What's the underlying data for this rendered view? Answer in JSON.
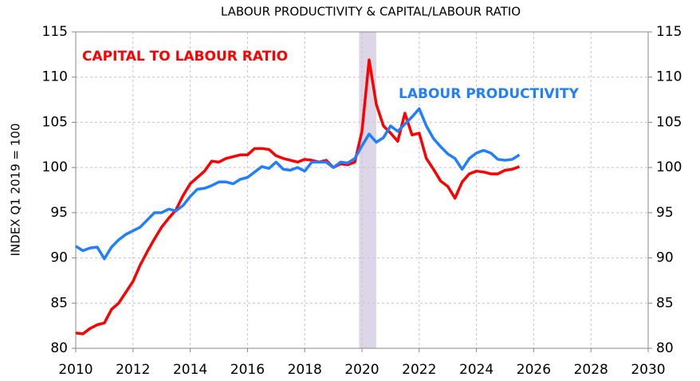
{
  "chart_data": {
    "type": "line",
    "title": "LABOUR PRODUCTIVITY & CAPITAL/LABOUR RATIO",
    "y_label": "INDEX Q1 2019 = 100",
    "x": [
      2010,
      2010.25,
      2010.5,
      2010.75,
      2011,
      2011.25,
      2011.5,
      2011.75,
      2012,
      2012.25,
      2012.5,
      2012.75,
      2013,
      2013.25,
      2013.5,
      2013.75,
      2014,
      2014.25,
      2014.5,
      2014.75,
      2015,
      2015.25,
      2015.5,
      2015.75,
      2016,
      2016.25,
      2016.5,
      2016.75,
      2017,
      2017.25,
      2017.5,
      2017.75,
      2018,
      2018.25,
      2018.5,
      2018.75,
      2019,
      2019.25,
      2019.5,
      2019.75,
      2020,
      2020.25,
      2020.5,
      2020.75,
      2021,
      2021.25,
      2021.5,
      2021.75,
      2022,
      2022.25,
      2022.5,
      2022.75,
      2023,
      2023.25,
      2023.5,
      2023.75,
      2024,
      2024.25,
      2024.5,
      2024.75,
      2025,
      2025.25,
      2025.5
    ],
    "series": [
      {
        "name": "CAPITAL TO LABOUR RATIO",
        "color": "#ff0000",
        "values": [
          81.7,
          81.6,
          82.2,
          82.6,
          82.8,
          84.3,
          85.0,
          86.2,
          87.4,
          89.2,
          90.7,
          92.1,
          93.4,
          94.4,
          95.3,
          96.9,
          98.2,
          98.9,
          99.6,
          100.7,
          100.6,
          101.0,
          101.2,
          101.4,
          101.4,
          102.1,
          102.1,
          102.0,
          101.3,
          101.0,
          100.8,
          100.6,
          100.9,
          100.8,
          100.6,
          100.8,
          100.0,
          100.4,
          100.3,
          100.6,
          104.0,
          111.9,
          107.0,
          104.6,
          103.8,
          102.9,
          106.0,
          103.6,
          103.8,
          101.0,
          99.8,
          98.5,
          97.9,
          96.6,
          98.4,
          99.3,
          99.6,
          99.5,
          99.3,
          99.3,
          99.7,
          99.8,
          100.1
        ]
      },
      {
        "name": "LABOUR PRODUCTIVITY",
        "color": "#1f7fff",
        "values": [
          91.3,
          90.8,
          91.1,
          91.2,
          89.9,
          91.2,
          92.0,
          92.6,
          93.0,
          93.4,
          94.2,
          95.0,
          95.0,
          95.4,
          95.2,
          95.8,
          96.8,
          97.6,
          97.7,
          98.0,
          98.4,
          98.4,
          98.2,
          98.7,
          98.9,
          99.5,
          100.1,
          99.9,
          100.6,
          99.8,
          99.7,
          100.0,
          99.6,
          100.6,
          100.6,
          100.6,
          100.0,
          100.6,
          100.5,
          101.0,
          102.4,
          103.7,
          102.8,
          103.3,
          104.6,
          104.0,
          104.8,
          105.6,
          106.5,
          104.6,
          103.2,
          102.3,
          101.5,
          101.0,
          99.8,
          101.0,
          101.6,
          101.9,
          101.6,
          100.9,
          100.8,
          100.9,
          101.4
        ]
      }
    ],
    "shaded_band": [
      2019.9,
      2020.5
    ],
    "xlim": [
      2010,
      2030
    ],
    "xticks": [
      2010,
      2012,
      2014,
      2016,
      2018,
      2020,
      2022,
      2024,
      2026,
      2028,
      2030
    ],
    "ylim": [
      80,
      115
    ],
    "yticks": [
      80,
      85,
      90,
      95,
      100,
      105,
      110,
      115
    ],
    "grid": true
  }
}
